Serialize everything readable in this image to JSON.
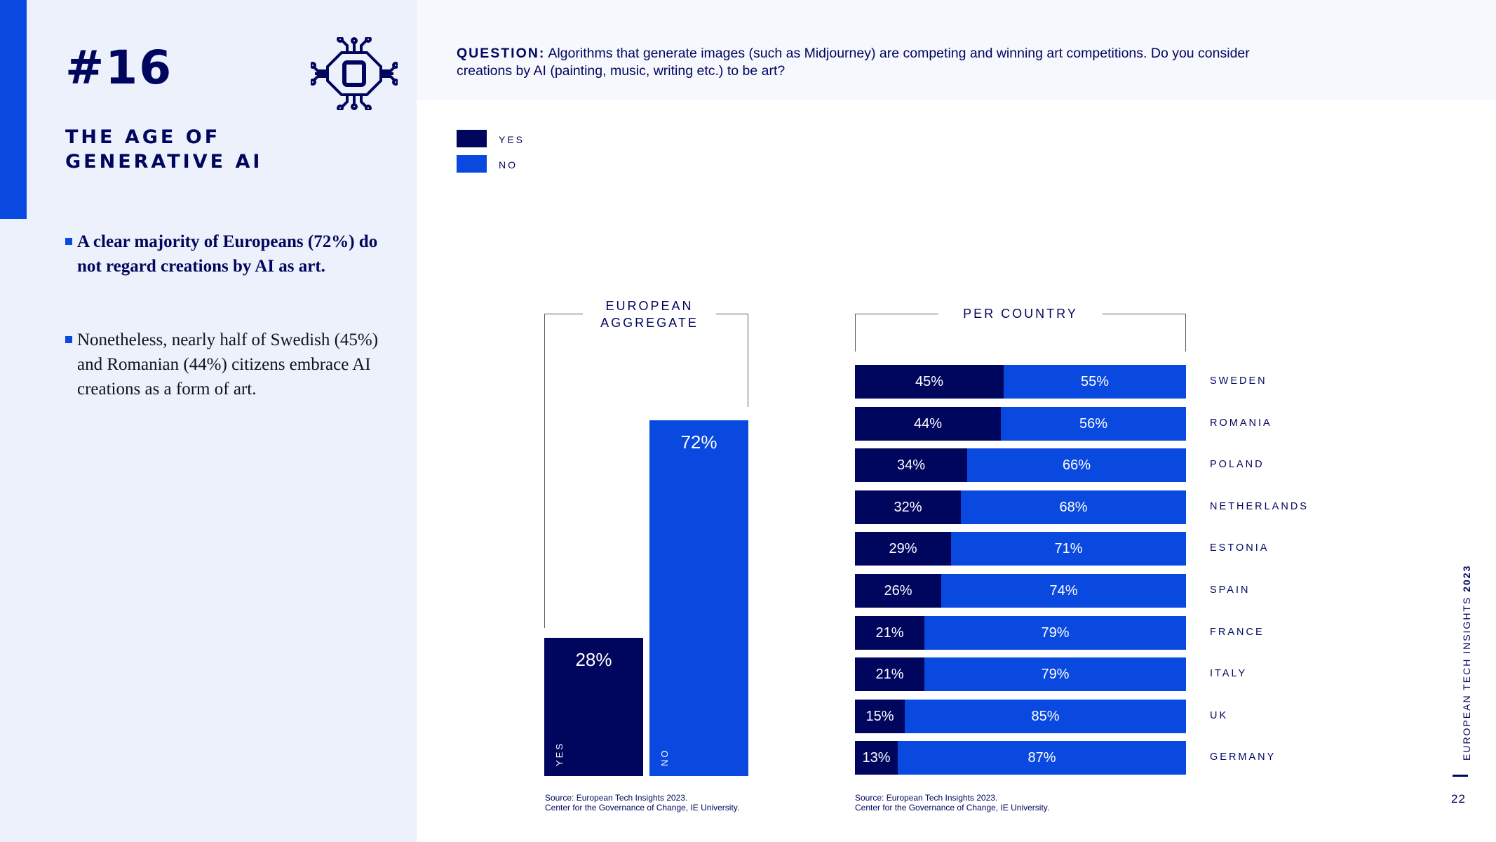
{
  "slide": {
    "number": "#16",
    "title_line1": "THE AGE OF",
    "title_line2": "GENERATIVE AI",
    "bullets": [
      "A clear majority of Europeans (72%) do not regard creations by AI as art.",
      "Nonetheless, nearly half of Swedish (45%) and Romanian (44%) citizens embrace AI creations as a form of art."
    ],
    "question_label": "QUESTION:",
    "question_text": "Algorithms that generate images (such as Midjourney) are competing and winning art competitions. Do you consider creations by AI (painting, music, writing etc.) to be art?",
    "side_label_text": "EUROPEAN TECH INSIGHTS",
    "side_label_year": "2023",
    "page_number": "22"
  },
  "legend": {
    "yes": {
      "label": "YES",
      "color": "#00065e"
    },
    "no": {
      "label": "NO",
      "color": "#0a49e0"
    }
  },
  "chart_data": [
    {
      "type": "bar",
      "title": "EUROPEAN AGGREGATE",
      "categories": [
        "YES",
        "NO"
      ],
      "values": [
        28,
        72
      ],
      "value_labels": [
        "28%",
        "72%"
      ],
      "ylim": [
        0,
        100
      ],
      "colors": [
        "#00065e",
        "#0a49e0"
      ],
      "source_line1": "Source: European Tech Insights 2023.",
      "source_line2": "Center for the Governance of Change, IE University."
    },
    {
      "type": "bar",
      "orientation": "horizontal-stacked",
      "title": "PER COUNTRY",
      "categories": [
        "SWEDEN",
        "ROMANIA",
        "POLAND",
        "NETHERLANDS",
        "ESTONIA",
        "SPAIN",
        "FRANCE",
        "ITALY",
        "UK",
        "GERMANY"
      ],
      "series": [
        {
          "name": "YES",
          "values": [
            45,
            44,
            34,
            32,
            29,
            26,
            21,
            21,
            15,
            13
          ],
          "labels": [
            "45%",
            "44%",
            "34%",
            "32%",
            "29%",
            "26%",
            "21%",
            "21%",
            "15%",
            "13%"
          ]
        },
        {
          "name": "NO",
          "values": [
            55,
            56,
            66,
            68,
            71,
            74,
            79,
            79,
            85,
            87
          ],
          "labels": [
            "55%",
            "56%",
            "66%",
            "68%",
            "71%",
            "74%",
            "79%",
            "79%",
            "85%",
            "87%"
          ]
        }
      ],
      "xlim": [
        0,
        100
      ],
      "source_line1": "Source: European Tech Insights 2023.",
      "source_line2": "Center for the Governance of Change, IE University."
    }
  ]
}
